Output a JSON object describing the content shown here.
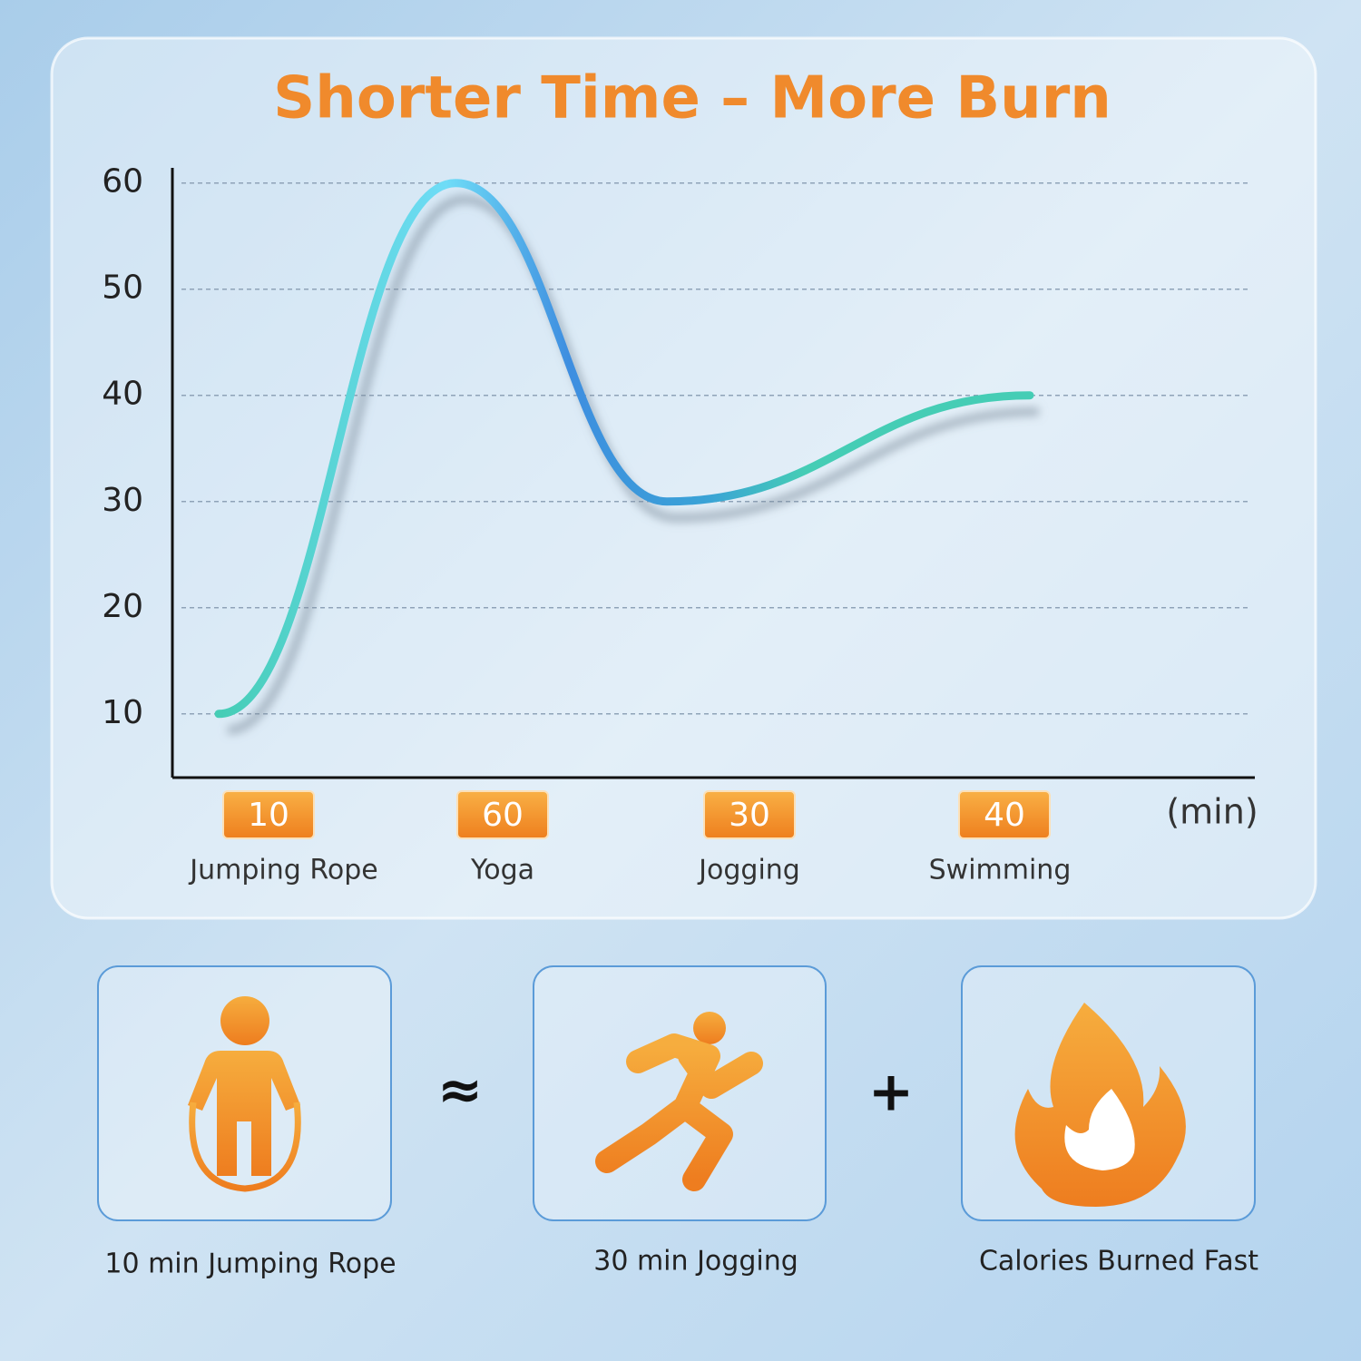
{
  "chart_data": {
    "type": "line",
    "title": "Shorter Time – More Burn",
    "x_label": "(min)",
    "categories": [
      "Jumping Rope",
      "Yoga",
      "Jogging",
      "Swimming"
    ],
    "series": [
      {
        "values": [
          10,
          60,
          30,
          40
        ],
        "color": "#45cdb5"
      }
    ],
    "ylim": [
      4,
      61
    ],
    "yticks": [
      10,
      20,
      30,
      40,
      50,
      60
    ],
    "grid": true
  },
  "cards": [
    {
      "caption": "10 min Jumping Rope"
    },
    {
      "caption": "30 min Jogging"
    },
    {
      "caption": "Calories Burned Fast"
    }
  ],
  "operators": [
    "≈",
    "+"
  ]
}
